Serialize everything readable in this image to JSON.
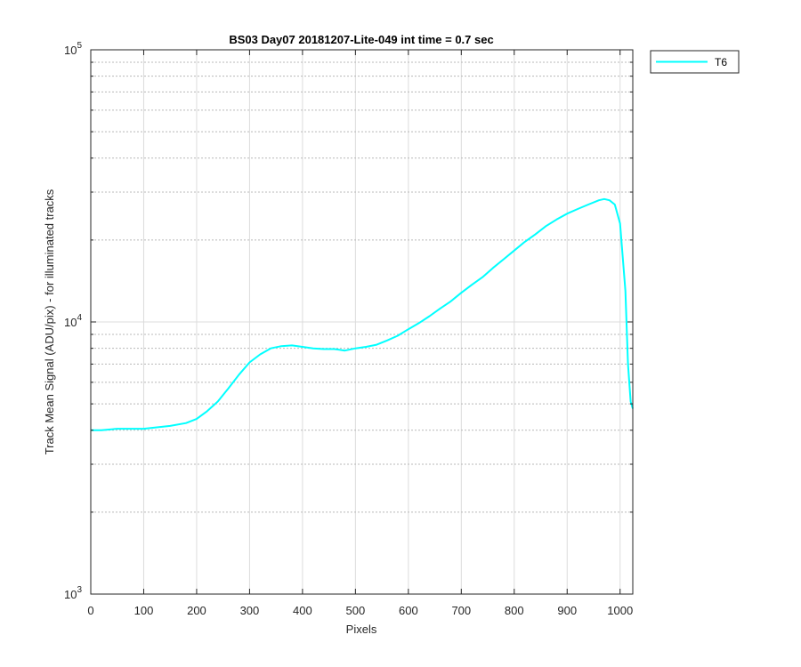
{
  "chart_data": {
    "type": "line",
    "title": "BS03 Day07 20181207-Lite-049 int time = 0.7 sec",
    "xlabel": "Pixels",
    "ylabel": "Track Mean Signal (ADU/pix) - for illuminated tracks",
    "xlim": [
      0,
      1024
    ],
    "ylim": [
      1000,
      100000
    ],
    "yscale": "log",
    "grid": true,
    "legend_position": "outside-top-right",
    "x_ticks": [
      0,
      100,
      200,
      300,
      400,
      500,
      600,
      700,
      800,
      900,
      1000
    ],
    "x_tick_labels": [
      "0",
      "100",
      "200",
      "300",
      "400",
      "500",
      "600",
      "700",
      "800",
      "900",
      "1000"
    ],
    "y_ticks": [
      {
        "value": 1000,
        "base": "10",
        "exp": "3"
      },
      {
        "value": 10000,
        "base": "10",
        "exp": "4"
      },
      {
        "value": 100000,
        "base": "10",
        "exp": "5"
      }
    ],
    "series": [
      {
        "name": "T6",
        "color": "#00ffff",
        "x": [
          0,
          20,
          50,
          100,
          150,
          180,
          200,
          220,
          240,
          260,
          280,
          300,
          320,
          340,
          360,
          380,
          400,
          420,
          440,
          460,
          480,
          500,
          520,
          540,
          560,
          580,
          600,
          620,
          640,
          660,
          680,
          700,
          720,
          740,
          760,
          780,
          800,
          820,
          840,
          860,
          880,
          900,
          920,
          940,
          960,
          970,
          980,
          990,
          1000,
          1010,
          1015,
          1020,
          1024
        ],
        "y": [
          4000,
          4000,
          4050,
          4050,
          4150,
          4250,
          4400,
          4700,
          5100,
          5700,
          6400,
          7100,
          7600,
          8000,
          8150,
          8200,
          8100,
          8000,
          7950,
          7950,
          7850,
          8000,
          8100,
          8250,
          8550,
          8900,
          9400,
          9900,
          10500,
          11200,
          11900,
          12800,
          13700,
          14600,
          15800,
          17000,
          18300,
          19700,
          21000,
          22500,
          23800,
          25000,
          26000,
          27000,
          28000,
          28300,
          28000,
          27000,
          23000,
          13000,
          7000,
          5100,
          4800
        ]
      }
    ]
  }
}
